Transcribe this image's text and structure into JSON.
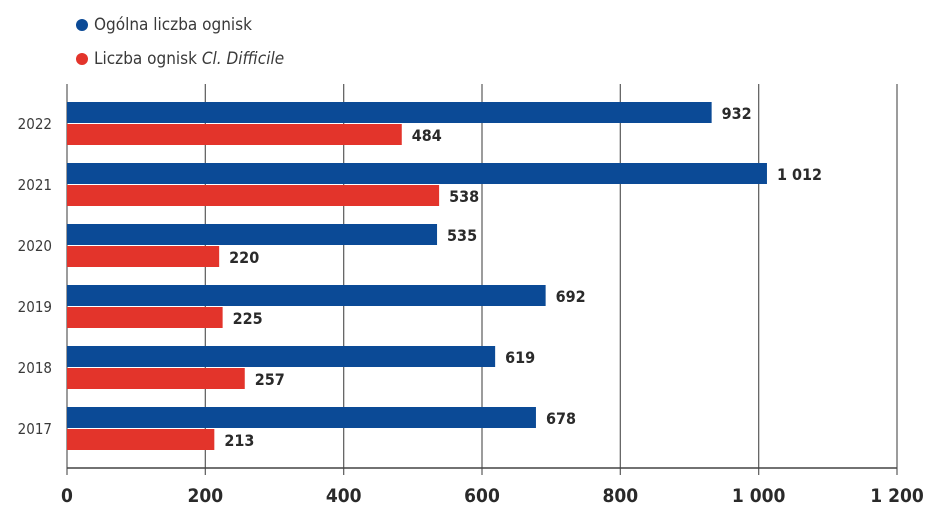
{
  "chart_data": {
    "type": "bar",
    "orientation": "horizontal",
    "categories": [
      "2022",
      "2021",
      "2020",
      "2019",
      "2018",
      "2017"
    ],
    "series": [
      {
        "name": "Ogólna liczba ognisk",
        "color": "#0b4a96",
        "values": [
          932,
          1012,
          535,
          692,
          619,
          678
        ],
        "labels": [
          "932",
          "1 012",
          "535",
          "692",
          "619",
          "678"
        ]
      },
      {
        "name": "Liczba ognisk Cl. Difficile",
        "name_plain": "Liczba ognisk ",
        "name_italic": "Cl. Difficile",
        "color": "#e3342b",
        "values": [
          484,
          538,
          220,
          225,
          257,
          213
        ],
        "labels": [
          "484",
          "538",
          "220",
          "225",
          "257",
          "213"
        ]
      }
    ],
    "xlim": [
      0,
      1200
    ],
    "xticks": [
      0,
      200,
      400,
      600,
      800,
      1000,
      1200
    ],
    "xtick_labels": [
      "0",
      "200",
      "400",
      "600",
      "800",
      "1 000",
      "1 200"
    ],
    "grid": true,
    "legend": "top-left"
  }
}
